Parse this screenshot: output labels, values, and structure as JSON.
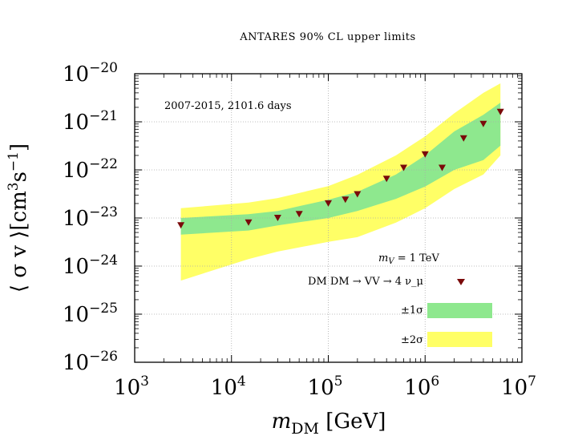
{
  "chart_data": {
    "type": "scatter",
    "title": "ANTARES 90% CL upper limits",
    "annotation": "2007-2015, 2101.6 days",
    "xlabel": {
      "main": "m",
      "sub": "DM",
      "unit": "[GeV]"
    },
    "ylabel": {
      "text": "⟨ σ v ⟩[cm",
      "sup1": "3",
      "mid": "s",
      "sup2": "−1",
      "end": "]"
    },
    "x_scale": "log",
    "y_scale": "log",
    "xlim": [
      1000,
      10000000
    ],
    "ylim": [
      1e-26,
      1e-20
    ],
    "x_ticks": [
      {
        "base": "10",
        "exp": "3",
        "value": 1000
      },
      {
        "base": "10",
        "exp": "4",
        "value": 10000
      },
      {
        "base": "10",
        "exp": "5",
        "value": 100000
      },
      {
        "base": "10",
        "exp": "6",
        "value": 1000000
      },
      {
        "base": "10",
        "exp": "7",
        "value": 10000000
      }
    ],
    "y_ticks": [
      {
        "base": "10",
        "exp": "−26",
        "value": 1e-26
      },
      {
        "base": "10",
        "exp": "−25",
        "value": 1e-25
      },
      {
        "base": "10",
        "exp": "−24",
        "value": 1e-24
      },
      {
        "base": "10",
        "exp": "−23",
        "value": 1e-23
      },
      {
        "base": "10",
        "exp": "−22",
        "value": 1e-22
      },
      {
        "base": "10",
        "exp": "−21",
        "value": 1e-21
      },
      {
        "base": "10",
        "exp": "−20",
        "value": 1e-20
      }
    ],
    "grid": true,
    "legend": {
      "position": "bottom-right",
      "header": "m_V = 1 TeV",
      "entries": [
        {
          "label": "DM DM → VV → 4 ν_μ",
          "kind": "marker",
          "color": "#7a0a0a"
        },
        {
          "label": "±1σ",
          "kind": "band",
          "color": "#8ee88e"
        },
        {
          "label": "±2σ",
          "kind": "band",
          "color": "#ffff66"
        }
      ]
    },
    "colors": {
      "one_sigma": "#8ee88e",
      "two_sigma": "#ffff66",
      "marker": "#7a0a0a",
      "grid": "#aaaaaa"
    },
    "points": [
      {
        "x": 3000,
        "y": 7e-24
      },
      {
        "x": 15000,
        "y": 8e-24
      },
      {
        "x": 30000,
        "y": 1e-23
      },
      {
        "x": 50000,
        "y": 1.2e-23
      },
      {
        "x": 100000,
        "y": 2e-23
      },
      {
        "x": 150000,
        "y": 2.4e-23
      },
      {
        "x": 200000,
        "y": 3.1e-23
      },
      {
        "x": 400000,
        "y": 6.5e-23
      },
      {
        "x": 600000,
        "y": 1.1e-22
      },
      {
        "x": 1000000,
        "y": 2.1e-22
      },
      {
        "x": 1500000,
        "y": 1.1e-22
      },
      {
        "x": 2500000,
        "y": 4.5e-22
      },
      {
        "x": 4000000,
        "y": 9e-22
      },
      {
        "x": 6000000,
        "y": 1.6e-21
      }
    ],
    "band_2sigma": [
      {
        "x": 3000,
        "lo": 5e-25,
        "hi": 1.6e-23
      },
      {
        "x": 15000,
        "lo": 1.4e-24,
        "hi": 2.1e-23
      },
      {
        "x": 30000,
        "lo": 2e-24,
        "hi": 2.6e-23
      },
      {
        "x": 100000,
        "lo": 3.2e-24,
        "hi": 4.6e-23
      },
      {
        "x": 200000,
        "lo": 4e-24,
        "hi": 7.9e-23
      },
      {
        "x": 500000,
        "lo": 8e-24,
        "hi": 2e-22
      },
      {
        "x": 1000000,
        "lo": 1.6e-23,
        "hi": 5e-22
      },
      {
        "x": 2000000,
        "lo": 4e-23,
        "hi": 1.5e-21
      },
      {
        "x": 4000000,
        "lo": 8e-23,
        "hi": 4e-21
      },
      {
        "x": 6000000,
        "lo": 2e-22,
        "hi": 6.3e-21
      }
    ],
    "band_1sigma": [
      {
        "x": 3000,
        "lo": 4.5e-24,
        "hi": 1e-23
      },
      {
        "x": 15000,
        "lo": 5.5e-24,
        "hi": 1.2e-23
      },
      {
        "x": 30000,
        "lo": 7e-24,
        "hi": 1.4e-23
      },
      {
        "x": 100000,
        "lo": 1e-23,
        "hi": 2.4e-23
      },
      {
        "x": 200000,
        "lo": 1.4e-23,
        "hi": 3.5e-23
      },
      {
        "x": 500000,
        "lo": 2.5e-23,
        "hi": 8e-23
      },
      {
        "x": 1000000,
        "lo": 4.5e-23,
        "hi": 2e-22
      },
      {
        "x": 2000000,
        "lo": 1e-22,
        "hi": 6.3e-22
      },
      {
        "x": 4000000,
        "lo": 1.6e-22,
        "hi": 1.4e-21
      },
      {
        "x": 6000000,
        "lo": 3.2e-22,
        "hi": 2.5e-21
      }
    ]
  }
}
